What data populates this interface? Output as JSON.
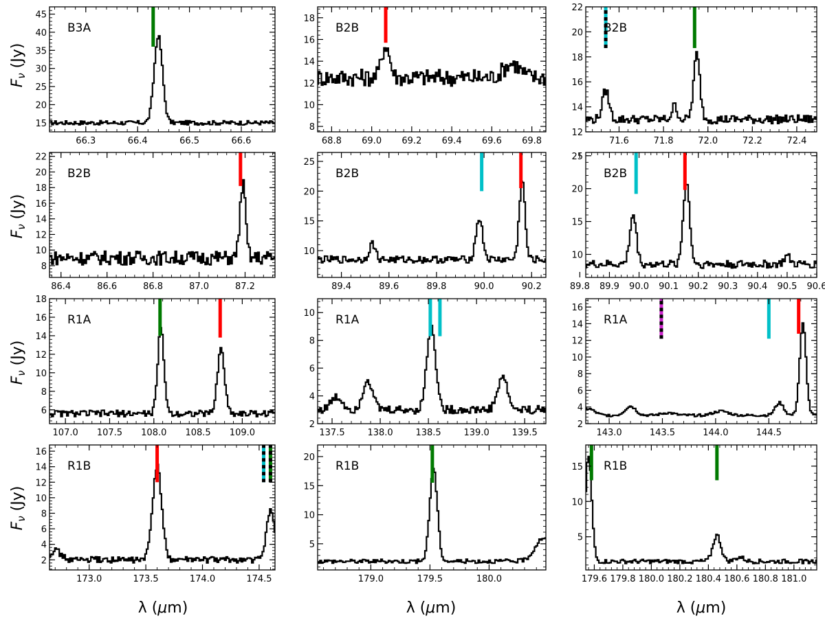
{
  "figure": {
    "ylabel_left": "F",
    "ylabel_sub": "ν",
    "ylabel_unit": " (Jy)",
    "xlabel_main": "λ (",
    "xlabel_mu": "μ",
    "xlabel_unit": "m)",
    "line_colors": {
      "red": "#ff0000",
      "green": "#007a00",
      "cyan": "#00c0c8",
      "magenta": "#cc22cc",
      "black": "#000000"
    }
  },
  "chart_data": [
    {
      "type": "line",
      "label": "B3A",
      "xlim": [
        66.23,
        66.665
      ],
      "ylim": [
        12.5,
        47
      ],
      "xticks": [
        {
          "v": 66.3,
          "t": "66.3"
        },
        {
          "v": 66.4,
          "t": "66.4"
        },
        {
          "v": 66.5,
          "t": "66.5"
        },
        {
          "v": 66.6,
          "t": "66.6"
        }
      ],
      "yticks": [
        {
          "v": 15,
          "t": "15"
        },
        {
          "v": 20,
          "t": "20"
        },
        {
          "v": 25,
          "t": "25"
        },
        {
          "v": 30,
          "t": "30"
        },
        {
          "v": 35,
          "t": "35"
        },
        {
          "v": 40,
          "t": "40"
        },
        {
          "v": 45,
          "t": "45"
        }
      ],
      "baseline": 15,
      "noise": 0.6,
      "peaks": [
        {
          "x": 66.44,
          "h": 24,
          "w": 0.008
        }
      ],
      "markers": [
        {
          "x": 66.43,
          "y0": 36,
          "y1": 47,
          "c": "green"
        }
      ]
    },
    {
      "type": "line",
      "label": "B2B",
      "xlim": [
        68.73,
        69.87
      ],
      "ylim": [
        7.5,
        19
      ],
      "xticks": [
        {
          "v": 68.8,
          "t": "68.8"
        },
        {
          "v": 69.0,
          "t": "69.0"
        },
        {
          "v": 69.2,
          "t": "69.2"
        },
        {
          "v": 69.4,
          "t": "69.4"
        },
        {
          "v": 69.6,
          "t": "69.6"
        },
        {
          "v": 69.8,
          "t": "69.8"
        }
      ],
      "yticks": [
        {
          "v": 8,
          "t": "8"
        },
        {
          "v": 10,
          "t": "10"
        },
        {
          "v": 12,
          "t": "12"
        },
        {
          "v": 14,
          "t": "14"
        },
        {
          "v": 16,
          "t": "16"
        },
        {
          "v": 18,
          "t": "18"
        }
      ],
      "baseline": 12.5,
      "noise": 0.8,
      "peaks": [
        {
          "x": 69.07,
          "h": 3,
          "w": 0.02
        },
        {
          "x": 69.7,
          "h": 1.3,
          "w": 0.04
        }
      ],
      "markers": [
        {
          "x": 69.07,
          "y0": 15.7,
          "y1": 19,
          "c": "red"
        }
      ]
    },
    {
      "type": "line",
      "label": "B2B",
      "xlim": [
        71.45,
        72.49
      ],
      "ylim": [
        12,
        22
      ],
      "xticks": [
        {
          "v": 71.6,
          "t": "71.6"
        },
        {
          "v": 71.8,
          "t": "71.8"
        },
        {
          "v": 72.0,
          "t": "72.0"
        },
        {
          "v": 72.2,
          "t": "72.2"
        },
        {
          "v": 72.4,
          "t": "72.4"
        }
      ],
      "yticks": [
        {
          "v": 12,
          "t": "12"
        },
        {
          "v": 14,
          "t": "14"
        },
        {
          "v": 16,
          "t": "16"
        },
        {
          "v": 18,
          "t": "18"
        },
        {
          "v": 20,
          "t": "20"
        },
        {
          "v": 22,
          "t": "22"
        }
      ],
      "baseline": 13,
      "noise": 0.35,
      "peaks": [
        {
          "x": 71.54,
          "h": 2.3,
          "w": 0.015
        },
        {
          "x": 71.85,
          "h": 1.1,
          "w": 0.012
        },
        {
          "x": 71.95,
          "h": 5.2,
          "w": 0.014
        }
      ],
      "markers": [
        {
          "x": 71.54,
          "y0": 18.7,
          "y1": 22,
          "c": "cyan",
          "dash": true
        },
        {
          "x": 71.94,
          "y0": 18.7,
          "y1": 22,
          "c": "green"
        }
      ]
    },
    {
      "type": "line",
      "label": "B2B",
      "xlim": [
        86.35,
        87.33
      ],
      "ylim": [
        6.5,
        22.5
      ],
      "xticks": [
        {
          "v": 86.4,
          "t": "86.4"
        },
        {
          "v": 86.6,
          "t": "86.6"
        },
        {
          "v": 86.8,
          "t": "86.8"
        },
        {
          "v": 87.0,
          "t": "87.0"
        },
        {
          "v": 87.2,
          "t": "87.2"
        }
      ],
      "yticks": [
        {
          "v": 8,
          "t": "8"
        },
        {
          "v": 10,
          "t": "10"
        },
        {
          "v": 12,
          "t": "12"
        },
        {
          "v": 14,
          "t": "14"
        },
        {
          "v": 16,
          "t": "16"
        },
        {
          "v": 18,
          "t": "18"
        },
        {
          "v": 20,
          "t": "20"
        },
        {
          "v": 22,
          "t": "22"
        }
      ],
      "baseline": 9,
      "noise": 0.9,
      "peaks": [
        {
          "x": 87.19,
          "h": 9.5,
          "w": 0.012
        }
      ],
      "markers": [
        {
          "x": 87.18,
          "y0": 18.2,
          "y1": 22.5,
          "c": "red"
        }
      ]
    },
    {
      "type": "line",
      "label": "B2B",
      "xlim": [
        89.3,
        90.26
      ],
      "ylim": [
        5.5,
        26.5
      ],
      "xticks": [
        {
          "v": 89.4,
          "t": "89.4"
        },
        {
          "v": 89.6,
          "t": "89.6"
        },
        {
          "v": 89.8,
          "t": "89.8"
        },
        {
          "v": 90.0,
          "t": "90.0"
        },
        {
          "v": 90.2,
          "t": "90.2"
        }
      ],
      "yticks": [
        {
          "v": 10,
          "t": "10"
        },
        {
          "v": 15,
          "t": "15"
        },
        {
          "v": 20,
          "t": "20"
        },
        {
          "v": 25,
          "t": "25"
        }
      ],
      "baseline": 8.5,
      "noise": 0.6,
      "peaks": [
        {
          "x": 89.53,
          "h": 2.7,
          "w": 0.013
        },
        {
          "x": 89.98,
          "h": 7,
          "w": 0.014
        },
        {
          "x": 90.16,
          "h": 13.5,
          "w": 0.012
        }
      ],
      "markers": [
        {
          "x": 89.99,
          "y0": 20,
          "y1": 26.5,
          "c": "cyan"
        },
        {
          "x": 90.155,
          "y0": 20.5,
          "y1": 26.5,
          "c": "red"
        }
      ]
    },
    {
      "type": "line",
      "label": "B2B",
      "xlim": [
        89.82,
        90.6
      ],
      "ylim": [
        6.5,
        25.5
      ],
      "xticks": [
        {
          "v": 89.8,
          "t": "89.8"
        },
        {
          "v": 89.9,
          "t": "89.9"
        },
        {
          "v": 90.0,
          "t": "90.0"
        },
        {
          "v": 90.1,
          "t": "90.1"
        },
        {
          "v": 90.2,
          "t": "90.2"
        },
        {
          "v": 90.3,
          "t": "90.3"
        },
        {
          "v": 90.4,
          "t": "90.4"
        },
        {
          "v": 90.5,
          "t": "90.5"
        },
        {
          "v": 90.6,
          "t": "90.6"
        }
      ],
      "yticks": [
        {
          "v": 10,
          "t": "10"
        },
        {
          "v": 15,
          "t": "15"
        },
        {
          "v": 20,
          "t": "20"
        },
        {
          "v": 25,
          "t": "25"
        }
      ],
      "baseline": 8.5,
      "noise": 0.6,
      "peaks": [
        {
          "x": 89.98,
          "h": 7.5,
          "w": 0.011
        },
        {
          "x": 90.16,
          "h": 12.5,
          "w": 0.011
        },
        {
          "x": 90.5,
          "h": 1.2,
          "w": 0.01
        }
      ],
      "markers": [
        {
          "x": 89.99,
          "y0": 19.2,
          "y1": 25.5,
          "c": "cyan"
        },
        {
          "x": 90.155,
          "y0": 19.8,
          "y1": 25.5,
          "c": "red"
        }
      ]
    },
    {
      "type": "line",
      "label": "R1A",
      "xlim": [
        106.82,
        109.37
      ],
      "ylim": [
        4.5,
        18
      ],
      "xticks": [
        {
          "v": 107.0,
          "t": "107.0"
        },
        {
          "v": 107.5,
          "t": "107.5"
        },
        {
          "v": 108.0,
          "t": "108.0"
        },
        {
          "v": 108.5,
          "t": "108.5"
        },
        {
          "v": 109.0,
          "t": "109.0"
        }
      ],
      "yticks": [
        {
          "v": 6,
          "t": "6"
        },
        {
          "v": 8,
          "t": "8"
        },
        {
          "v": 10,
          "t": "10"
        },
        {
          "v": 12,
          "t": "12"
        },
        {
          "v": 14,
          "t": "14"
        },
        {
          "v": 16,
          "t": "16"
        },
        {
          "v": 18,
          "t": "18"
        }
      ],
      "baseline": 5.6,
      "noise": 0.35,
      "peaks": [
        {
          "x": 108.08,
          "h": 9.2,
          "w": 0.035
        },
        {
          "x": 108.76,
          "h": 7,
          "w": 0.04
        }
      ],
      "markers": [
        {
          "x": 108.07,
          "y0": 14,
          "y1": 18,
          "c": "green"
        },
        {
          "x": 108.75,
          "y0": 13.8,
          "y1": 18,
          "c": "red"
        }
      ]
    },
    {
      "type": "line",
      "label": "R1A",
      "xlim": [
        137.35,
        139.72
      ],
      "ylim": [
        2,
        11
      ],
      "xticks": [
        {
          "v": 137.5,
          "t": "137.5"
        },
        {
          "v": 138.0,
          "t": "138.0"
        },
        {
          "v": 138.5,
          "t": "138.5"
        },
        {
          "v": 139.0,
          "t": "139.0"
        },
        {
          "v": 139.5,
          "t": "139.5"
        }
      ],
      "yticks": [
        {
          "v": 2,
          "t": "2"
        },
        {
          "v": 4,
          "t": "4"
        },
        {
          "v": 6,
          "t": "6"
        },
        {
          "v": 8,
          "t": "8"
        },
        {
          "v": 10,
          "t": "10"
        }
      ],
      "baseline": 3,
      "noise": 0.3,
      "peaks": [
        {
          "x": 137.55,
          "h": 0.9,
          "w": 0.06
        },
        {
          "x": 137.87,
          "h": 2.2,
          "w": 0.05
        },
        {
          "x": 138.53,
          "h": 6.2,
          "w": 0.045
        },
        {
          "x": 139.27,
          "h": 2.4,
          "w": 0.05
        }
      ],
      "markers": [
        {
          "x": 138.52,
          "y0": 8.3,
          "y1": 11,
          "c": "cyan"
        },
        {
          "x": 138.62,
          "y0": 8.3,
          "y1": 11,
          "c": "cyan"
        }
      ]
    },
    {
      "type": "line",
      "label": "R1A",
      "xlim": [
        142.78,
        144.95
      ],
      "ylim": [
        2,
        17
      ],
      "xticks": [
        {
          "v": 143.0,
          "t": "143.0"
        },
        {
          "v": 143.5,
          "t": "143.5"
        },
        {
          "v": 144.0,
          "t": "144.0"
        },
        {
          "v": 144.5,
          "t": "144.5"
        }
      ],
      "yticks": [
        {
          "v": 2,
          "t": "2"
        },
        {
          "v": 4,
          "t": "4"
        },
        {
          "v": 6,
          "t": "6"
        },
        {
          "v": 8,
          "t": "8"
        },
        {
          "v": 10,
          "t": "10"
        },
        {
          "v": 12,
          "t": "12"
        },
        {
          "v": 14,
          "t": "14"
        },
        {
          "v": 16,
          "t": "16"
        }
      ],
      "baseline": 3,
      "noise": 0.15,
      "peaks": [
        {
          "x": 142.8,
          "h": 0.8,
          "w": 0.06
        },
        {
          "x": 143.2,
          "h": 1.1,
          "w": 0.05
        },
        {
          "x": 143.55,
          "h": 0.3,
          "w": 0.06
        },
        {
          "x": 144.05,
          "h": 0.5,
          "w": 0.07
        },
        {
          "x": 144.6,
          "h": 1.5,
          "w": 0.04
        },
        {
          "x": 144.82,
          "h": 11,
          "w": 0.03
        }
      ],
      "markers": [
        {
          "x": 143.49,
          "y0": 12.2,
          "y1": 17,
          "c": "magenta",
          "dash": true
        },
        {
          "x": 144.5,
          "y0": 12.2,
          "y1": 17,
          "c": "cyan"
        },
        {
          "x": 144.78,
          "y0": 12.8,
          "y1": 17,
          "c": "red"
        }
      ]
    },
    {
      "type": "line",
      "label": "R1B",
      "xlim": [
        172.65,
        174.64
      ],
      "ylim": [
        0.7,
        16.8
      ],
      "xticks": [
        {
          "v": 173.0,
          "t": "173.0"
        },
        {
          "v": 173.5,
          "t": "173.5"
        },
        {
          "v": 174.0,
          "t": "174.0"
        },
        {
          "v": 174.5,
          "t": "174.5"
        }
      ],
      "yticks": [
        {
          "v": 2,
          "t": "2"
        },
        {
          "v": 4,
          "t": "4"
        },
        {
          "v": 6,
          "t": "6"
        },
        {
          "v": 8,
          "t": "8"
        },
        {
          "v": 10,
          "t": "10"
        },
        {
          "v": 12,
          "t": "12"
        },
        {
          "v": 14,
          "t": "14"
        },
        {
          "v": 16,
          "t": "16"
        }
      ],
      "baseline": 2,
      "noise": 0.4,
      "peaks": [
        {
          "x": 172.7,
          "h": 1.2,
          "w": 0.05
        },
        {
          "x": 173.6,
          "h": 12,
          "w": 0.04
        },
        {
          "x": 174.6,
          "h": 6.5,
          "w": 0.035
        }
      ],
      "markers": [
        {
          "x": 173.6,
          "y0": 12,
          "y1": 16.8,
          "c": "red"
        },
        {
          "x": 174.54,
          "y0": 12,
          "y1": 16.8,
          "c": "cyan",
          "dash": true
        },
        {
          "x": 174.6,
          "y0": 12,
          "y1": 16.8,
          "c": "green",
          "dash": true
        }
      ]
    },
    {
      "type": "line",
      "label": "R1B",
      "xlim": [
        178.55,
        180.48
      ],
      "ylim": [
        0.5,
        22
      ],
      "xticks": [
        {
          "v": 179.0,
          "t": "179.0"
        },
        {
          "v": 179.5,
          "t": "179.5"
        },
        {
          "v": 180.0,
          "t": "180.0"
        }
      ],
      "yticks": [
        {
          "v": 5,
          "t": "5"
        },
        {
          "v": 10,
          "t": "10"
        },
        {
          "v": 15,
          "t": "15"
        },
        {
          "v": 20,
          "t": "20"
        }
      ],
      "baseline": 2,
      "noise": 0.35,
      "peaks": [
        {
          "x": 179.53,
          "h": 16,
          "w": 0.032
        },
        {
          "x": 180.46,
          "h": 4,
          "w": 0.07
        }
      ],
      "markers": [
        {
          "x": 179.52,
          "y0": 15.5,
          "y1": 22,
          "c": "green"
        }
      ]
    },
    {
      "type": "line",
      "label": "R1B",
      "xlim": [
        179.54,
        181.16
      ],
      "ylim": [
        0.3,
        18
      ],
      "xticks": [
        {
          "v": 179.6,
          "t": "179.6"
        },
        {
          "v": 179.8,
          "t": "179.8"
        },
        {
          "v": 180.0,
          "t": "180.0"
        },
        {
          "v": 180.2,
          "t": "180.2"
        },
        {
          "v": 180.4,
          "t": "180.4"
        },
        {
          "v": 180.6,
          "t": "180.6"
        },
        {
          "v": 180.8,
          "t": "180.8"
        },
        {
          "v": 181.0,
          "t": "181.0"
        }
      ],
      "yticks": [
        {
          "v": 5,
          "t": "5"
        },
        {
          "v": 10,
          "t": "10"
        },
        {
          "v": 15,
          "t": "15"
        }
      ],
      "baseline": 1.5,
      "noise": 0.3,
      "peaks": [
        {
          "x": 179.56,
          "h": 15,
          "w": 0.022
        },
        {
          "x": 180.46,
          "h": 3.7,
          "w": 0.028
        },
        {
          "x": 180.62,
          "h": 0.6,
          "w": 0.03
        }
      ],
      "markers": [
        {
          "x": 179.58,
          "y0": 13,
          "y1": 18,
          "c": "green"
        },
        {
          "x": 180.46,
          "y0": 13,
          "y1": 18,
          "c": "green"
        }
      ]
    }
  ]
}
